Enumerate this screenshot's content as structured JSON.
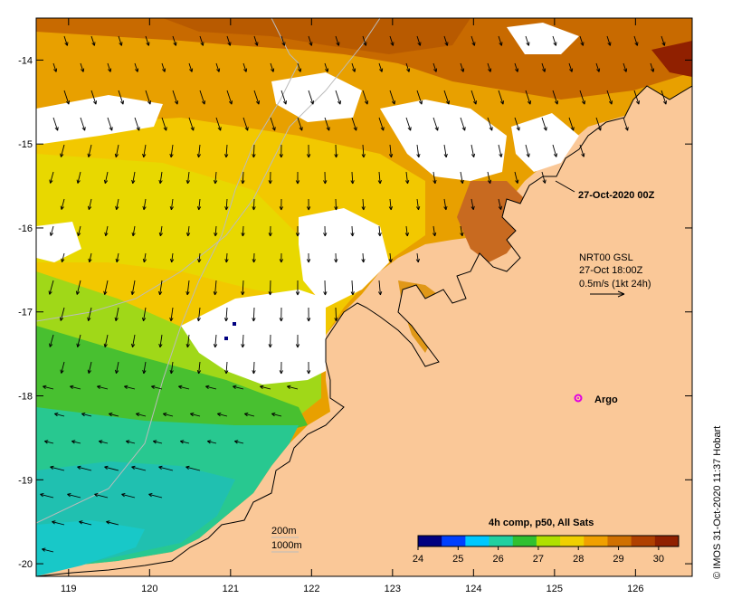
{
  "axes": {
    "lat_ticks": [
      -14,
      -15,
      -16,
      -17,
      -18,
      -19,
      -20
    ],
    "lon_ticks": [
      119,
      120,
      121,
      122,
      123,
      124,
      125,
      126
    ],
    "lon_range": [
      118.6,
      126.7
    ],
    "lat_range": [
      -20.15,
      -13.5
    ]
  },
  "annotations": {
    "analysis_time": "27-Oct-2020 00Z",
    "current_product": "NRT00 GSL",
    "current_time": "27-Oct 18:00Z",
    "current_scale": "0.5m/s (1kt 24h)",
    "argo_label": "Argo",
    "argo_position": [
      125.3,
      -18.0
    ],
    "depth_200": "200m",
    "depth_1000": "1000m"
  },
  "colorbar": {
    "title": "4h comp, p50, All Sats",
    "ticks": [
      24,
      25,
      26,
      27,
      28,
      29,
      30
    ],
    "range": [
      24,
      30.5
    ],
    "colors": [
      "#000080",
      "#0040ff",
      "#00c8ff",
      "#20d0a0",
      "#30c030",
      "#b0e000",
      "#f0d000",
      "#f0a000",
      "#d07000",
      "#b04000",
      "#902000"
    ]
  },
  "credit": "© IMOS 31-Oct-2020 11:37 Hobart",
  "colors": {
    "land": "#fac898",
    "coastline": "#000000",
    "isobath": "#a0a0a0",
    "argo": "#e000e0"
  }
}
